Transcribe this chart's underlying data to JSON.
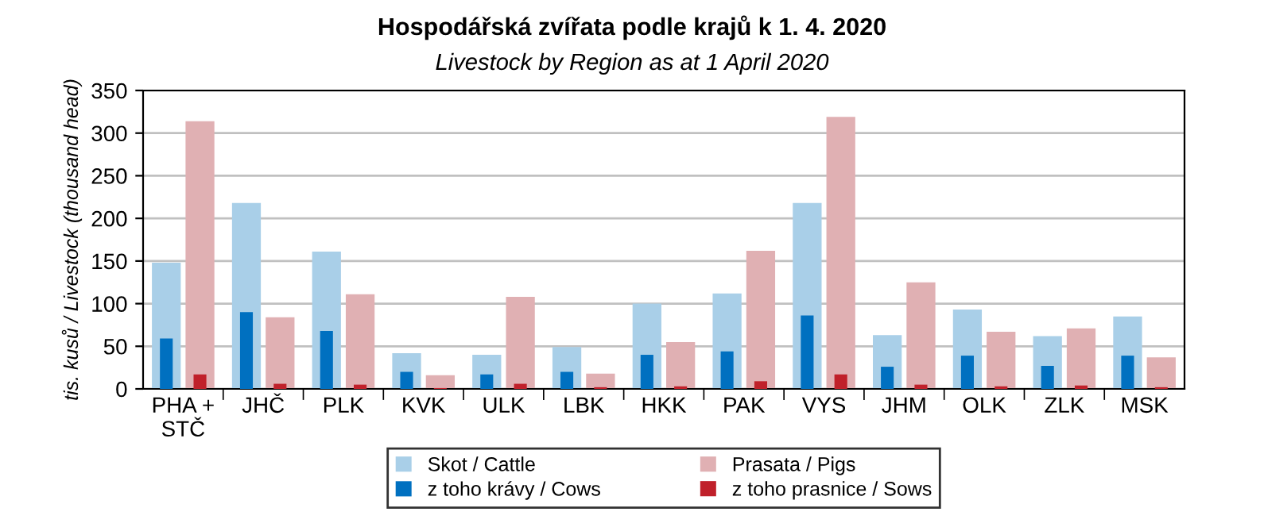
{
  "chart_data": {
    "type": "bar",
    "title": "Hospodářská zvířata podle krajů k 1. 4. 2020",
    "subtitle": "Livestock by Region as at 1 April 2020",
    "ylabel": "tis. kusů / Livestock (thousand head)",
    "categories": [
      "PHA +\nSTČ",
      "JHČ",
      "PLK",
      "KVK",
      "ULK",
      "LBK",
      "HKK",
      "PAK",
      "VYS",
      "JHM",
      "OLK",
      "ZLK",
      "MSK"
    ],
    "series": [
      {
        "name": "Skot / Cattle",
        "color": "#a9cfe8",
        "values": [
          148,
          218,
          161,
          42,
          40,
          49,
          100,
          112,
          218,
          63,
          93,
          62,
          85
        ]
      },
      {
        "name": "Prasata / Pigs",
        "color": "#e0b0b3",
        "values": [
          314,
          84,
          111,
          16,
          108,
          18,
          55,
          162,
          319,
          125,
          67,
          71,
          37
        ]
      },
      {
        "name": "z toho krávy / Cows",
        "color": "#0070c0",
        "values": [
          59,
          90,
          68,
          20,
          17,
          20,
          40,
          44,
          86,
          26,
          39,
          27,
          39
        ]
      },
      {
        "name": "z toho prasnice / Sows",
        "color": "#c0202a",
        "values": [
          17,
          6,
          5,
          1,
          6,
          2,
          3,
          9,
          17,
          5,
          3,
          4,
          2
        ]
      }
    ],
    "ylim": [
      0,
      350
    ],
    "yticks": [
      0,
      50,
      100,
      150,
      200,
      250,
      300,
      350
    ],
    "grid": "y",
    "legend": "bottom"
  }
}
